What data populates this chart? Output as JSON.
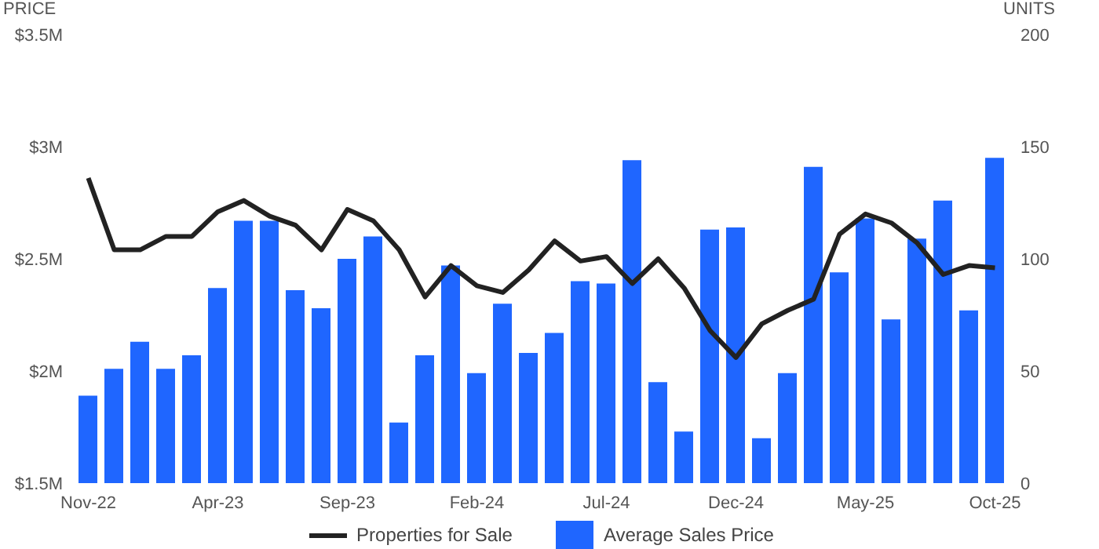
{
  "chart_data": {
    "type": "bar",
    "ylabel": "PRICE",
    "y2label": "UNITS",
    "categories": [
      "Nov-22",
      null,
      null,
      null,
      null,
      "Apr-23",
      null,
      null,
      null,
      null,
      "Sep-23",
      null,
      null,
      null,
      null,
      "Feb-24",
      null,
      null,
      null,
      null,
      "Jul-24",
      null,
      null,
      null,
      null,
      "Dec-24",
      null,
      null,
      null,
      null,
      "May-25",
      null,
      null,
      null,
      null,
      "Oct-25"
    ],
    "series": [
      {
        "name": "Properties for Sale",
        "type": "line",
        "axis": "y2",
        "color": "#222222",
        "values": [
          136,
          104,
          104,
          110,
          110,
          121,
          126,
          119,
          115,
          104,
          122,
          117,
          104,
          83,
          97,
          88,
          85,
          95,
          108,
          99,
          101,
          89,
          100,
          87,
          68,
          56,
          71,
          77,
          82,
          111,
          120,
          116,
          107,
          93,
          97,
          96
        ]
      },
      {
        "name": "Average Sales Price",
        "color": "#1f66ff",
        "values": [
          1.89,
          2.01,
          2.13,
          2.01,
          2.07,
          2.37,
          2.67,
          2.67,
          2.36,
          2.28,
          2.5,
          2.6,
          1.77,
          2.07,
          2.47,
          1.99,
          2.3,
          2.08,
          2.17,
          2.4,
          2.39,
          2.94,
          1.95,
          1.73,
          2.63,
          2.64,
          1.7,
          1.99,
          2.91,
          2.44,
          2.68,
          2.23,
          2.59,
          2.76,
          2.27,
          2.95
        ]
      }
    ],
    "ylim": [
      1.5,
      3.5
    ],
    "yticks": [
      {
        "value": 1.5,
        "label": "$1.5M"
      },
      {
        "value": 2,
        "label": "$2M"
      },
      {
        "value": 2.5,
        "label": "$2.5M"
      },
      {
        "value": 3,
        "label": "$3M"
      },
      {
        "value": 3.5,
        "label": "$3.5M"
      }
    ],
    "y2lim": [
      0,
      200
    ],
    "y2ticks": [
      0,
      50,
      100,
      150,
      200
    ],
    "legend": "bottom",
    "marker": "none"
  }
}
